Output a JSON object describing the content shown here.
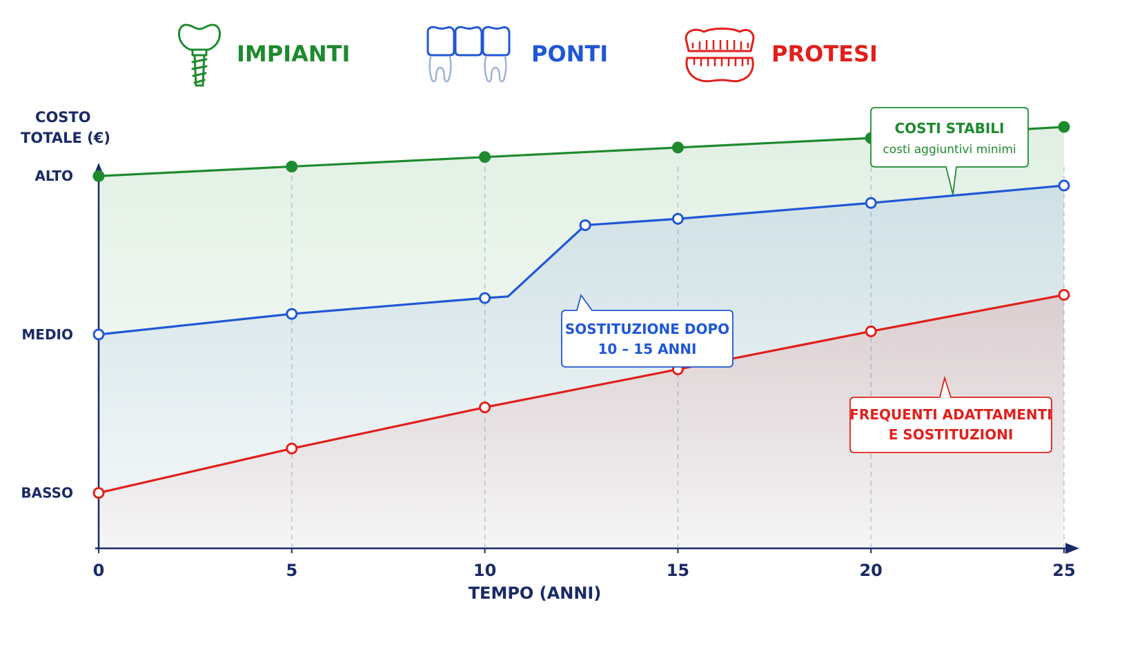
{
  "chart_data": {
    "type": "line",
    "xlabel": "TEMPO (ANNI)",
    "ylabel": [
      "COSTO",
      "TOTALE (€)"
    ],
    "x_ticks": [
      0,
      5,
      10,
      15,
      20,
      25
    ],
    "xlim": [
      0,
      25
    ],
    "ylim": [
      0,
      3.2
    ],
    "y_ticks": [
      {
        "label": "BASSO",
        "value": 0.35
      },
      {
        "label": "MEDIO",
        "value": 1.35
      },
      {
        "label": "ALTO",
        "value": 2.35
      }
    ],
    "grid": "vertical-dashed",
    "legend_position": "top",
    "series": [
      {
        "name": "IMPIANTI",
        "color": "#1e8a2e",
        "icon": "dental-implant-icon",
        "marker": "filled",
        "x": [
          0,
          5,
          10,
          15,
          20,
          25
        ],
        "y": [
          2.35,
          2.41,
          2.47,
          2.53,
          2.59,
          2.66
        ]
      },
      {
        "name": "PONTI",
        "color": "#1f57d6",
        "icon": "dental-bridge-icon",
        "marker": "hollow",
        "x": [
          0,
          5,
          10,
          10.6,
          12.6,
          15,
          20,
          25
        ],
        "y": [
          1.35,
          1.48,
          1.58,
          1.59,
          2.04,
          2.08,
          2.18,
          2.29
        ],
        "marker_x": [
          0,
          5,
          10,
          12.6,
          15,
          20,
          25
        ]
      },
      {
        "name": "PROTESI",
        "color": "#e0201c",
        "icon": "dentures-icon",
        "marker": "hollow",
        "x": [
          0,
          5,
          10,
          15,
          20,
          25
        ],
        "y": [
          0.35,
          0.63,
          0.89,
          1.13,
          1.37,
          1.6
        ]
      }
    ],
    "annotations": [
      {
        "series": "IMPIANTI",
        "title": "COSTI STABILI",
        "subtitle": "costi aggiuntivi minimi",
        "color": "#1e8a2e"
      },
      {
        "series": "PONTI",
        "lines": [
          "SOSTITUZIONE DOPO",
          "10 – 15 ANNI"
        ],
        "color": "#1f57d6"
      },
      {
        "series": "PROTESI",
        "lines": [
          "FREQUENTI ADATTAMENTI",
          "E SOSTITUZIONI"
        ],
        "color": "#e0201c"
      }
    ],
    "axis_color": "#1a2a66"
  }
}
